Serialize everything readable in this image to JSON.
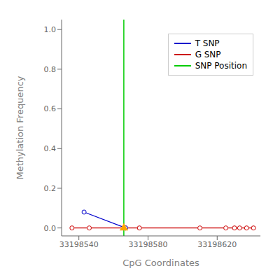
{
  "chart_data": {
    "type": "line",
    "xlabel": "CpG Coordinates",
    "ylabel": "Methylation Frequency",
    "xlim": [
      33198530,
      33198645
    ],
    "xticks": [
      33198540,
      33198580,
      33198620
    ],
    "ylim": [
      -0.04,
      1.05
    ],
    "yticks": [
      {
        "value": 0.0,
        "label": "0.0"
      },
      0.2,
      0.4,
      0.6,
      0.8,
      {
        "value": 1.0,
        "label": "1.0"
      }
    ],
    "grid": false,
    "legend": "upper right",
    "series": [
      {
        "name": "T SNP",
        "type": "line",
        "color": "#0000CC",
        "marker": "circle",
        "x": [
          33198543,
          33198567
        ],
        "values": [
          0.08,
          0.0
        ]
      },
      {
        "name": "G SNP",
        "type": "line",
        "color": "#CC0000",
        "marker": "circle",
        "x": [
          33198536,
          33198546,
          33198567,
          33198575,
          33198610,
          33198625,
          33198630,
          33198633,
          33198637,
          33198641
        ],
        "values": [
          0.0,
          0.0,
          0.0,
          0.0,
          0.0,
          0.0,
          0.0,
          0.0,
          0.0,
          0.0
        ]
      },
      {
        "name": "SNP Position",
        "type": "vline",
        "color": "#00CC00",
        "x": [
          33198566
        ]
      },
      {
        "type": "scatter",
        "color": "#FFA500",
        "marker": "triangle",
        "x": [
          33198566
        ],
        "values": [
          0.0
        ]
      }
    ]
  }
}
